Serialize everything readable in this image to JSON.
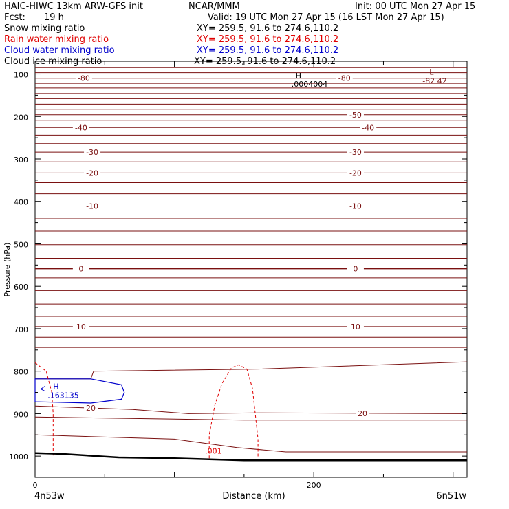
{
  "header": {
    "left1": "HAIC-HIWC 13km ARW-GFS init",
    "org": "NCAR/MMM",
    "init": "Init: 00 UTC Mon 27 Apr 15",
    "fcst_label": "Fcst:",
    "fcst_value": "19 h",
    "valid": "Valid: 19 UTC Mon 27 Apr 15 (16 LST Mon 27 Apr 15)"
  },
  "fields": [
    {
      "name": "Snow mixing ratio",
      "xy": "XY= 259.5, 91.6 to 274.6,110.2",
      "color": "#000000"
    },
    {
      "name": "Rain water mixing ratio",
      "xy": "XY= 259.5, 91.6 to 274.6,110.2",
      "color": "#e00000"
    },
    {
      "name": "Cloud water mixing ratio",
      "xy": "XY= 259.5, 91.6 to 274.6,110.2",
      "color": "#0000cc"
    },
    {
      "name": "Cloud ice mixing ratio",
      "xy": "XY= 259.5, 91.6 to 274.6,110.2",
      "color": "#000000"
    }
  ],
  "chart_data": {
    "type": "line",
    "title": "HAIC-HIWC 13km ARW-GFS init",
    "xlabel": "Distance (km)",
    "ylabel": "Pressure (hPa)",
    "xlim": [
      0,
      310
    ],
    "ylim": [
      1050,
      70
    ],
    "xticks": [
      0,
      200
    ],
    "yticks": [
      100,
      200,
      300,
      400,
      500,
      600,
      700,
      800,
      900,
      1000
    ],
    "endpoint_left": "4n53w",
    "endpoint_right": "6n51w",
    "temperature_contours": {
      "color": "#7a1010",
      "levels": [
        {
          "p": 85
        },
        {
          "p": 97
        },
        {
          "p": 110,
          "label": "-80",
          "lx": [
            35,
            222
          ]
        },
        {
          "p": 122
        },
        {
          "p": 133
        },
        {
          "p": 146
        },
        {
          "p": 158
        },
        {
          "p": 171
        },
        {
          "p": 183
        },
        {
          "p": 196,
          "label": "-50",
          "lx": [
            230
          ]
        },
        {
          "p": 209
        },
        {
          "p": 226,
          "label": "-40",
          "lx": [
            33,
            239
          ]
        },
        {
          "p": 244
        },
        {
          "p": 264
        },
        {
          "p": 284,
          "label": "-30",
          "lx": [
            41,
            230
          ]
        },
        {
          "p": 307
        },
        {
          "p": 333,
          "label": "-20",
          "lx": [
            41,
            230
          ]
        },
        {
          "p": 356
        },
        {
          "p": 382
        },
        {
          "p": 411,
          "label": "-10",
          "lx": [
            41,
            230
          ]
        },
        {
          "p": 441
        },
        {
          "p": 470
        },
        {
          "p": 502
        },
        {
          "p": 534
        },
        {
          "p": 558,
          "label": "0",
          "lx": [
            33,
            230
          ],
          "bold": true
        },
        {
          "p": 580
        },
        {
          "p": 610
        },
        {
          "p": 642
        },
        {
          "p": 671
        },
        {
          "p": 695,
          "label": "10",
          "lx": [
            33,
            230
          ]
        },
        {
          "p": 720
        },
        {
          "p": 744
        }
      ],
      "extra_lines": [
        {
          "pts": [
            [
              0,
              818
            ],
            [
              40,
              818
            ],
            [
              42,
              800
            ],
            [
              160,
              795
            ],
            [
              310,
              778
            ]
          ]
        },
        {
          "pts": [
            [
              0,
              882
            ],
            [
              70,
              890
            ],
            [
              110,
              900
            ],
            [
              160,
              898
            ],
            [
              310,
              900
            ]
          ],
          "label": "20",
          "lx": [
            40,
            235
          ]
        },
        {
          "pts": [
            [
              0,
              908
            ],
            [
              150,
              915
            ],
            [
              310,
              915
            ]
          ]
        },
        {
          "pts": [
            [
              0,
              950
            ],
            [
              100,
              960
            ],
            [
              145,
              980
            ],
            [
              180,
              990
            ],
            [
              310,
              990
            ]
          ]
        }
      ]
    },
    "cloud_water": {
      "color": "#0000cc",
      "outline": [
        [
          0,
          818
        ],
        [
          40,
          818
        ],
        [
          62,
          832
        ],
        [
          64,
          850
        ],
        [
          62,
          866
        ],
        [
          40,
          875
        ],
        [
          0,
          872
        ]
      ],
      "max_label": "H",
      "max_value": ".163135"
    },
    "rain_water": {
      "color": "#e00000",
      "label": ".001",
      "left_edge": [
        [
          0,
          780
        ],
        [
          8,
          800
        ],
        [
          12,
          850
        ],
        [
          13,
          900
        ],
        [
          13,
          960
        ],
        [
          13,
          1000
        ]
      ],
      "dome": [
        [
          125,
          1005
        ],
        [
          125,
          950
        ],
        [
          129,
          880
        ],
        [
          134,
          830
        ],
        [
          141,
          792
        ],
        [
          146,
          785
        ],
        [
          152,
          795
        ],
        [
          156,
          840
        ],
        [
          158,
          900
        ],
        [
          160,
          960
        ],
        [
          160,
          1005
        ]
      ]
    },
    "ground": {
      "color": "#000000",
      "pts": [
        [
          0,
          993
        ],
        [
          20,
          995
        ],
        [
          60,
          1003
        ],
        [
          100,
          1005
        ],
        [
          150,
          1010
        ],
        [
          310,
          1010
        ]
      ]
    },
    "snow_max": {
      "label": "H",
      "value": ".0004004",
      "x": 185,
      "p": 112
    },
    "temp_min": {
      "label": "L",
      "value": "-82.42",
      "x": 280,
      "p": 95
    }
  }
}
